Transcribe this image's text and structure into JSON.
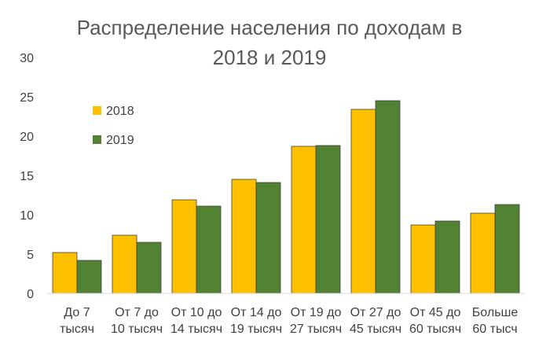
{
  "chart_data": {
    "type": "bar",
    "title_lines": [
      "Распределение населения по доходам в",
      "2018 и 2019"
    ],
    "categories": [
      [
        "До 7",
        "тысяч"
      ],
      [
        "От 7 до",
        "10 тысяч"
      ],
      [
        "От 10 до",
        "14 тысяч"
      ],
      [
        "От 14 до",
        "19 тысяч"
      ],
      [
        "От 19 до",
        "27 тысяч"
      ],
      [
        "От 27 до",
        "45 тысяч"
      ],
      [
        "От 45 до",
        "60 тысяч"
      ],
      [
        "Больше",
        "60 тысч"
      ]
    ],
    "series": [
      {
        "name": "2018",
        "color": "#FFC000",
        "values": [
          5.2,
          7.4,
          11.9,
          14.5,
          18.7,
          23.4,
          8.7,
          10.2
        ]
      },
      {
        "name": "2019",
        "color": "#548235",
        "values": [
          4.2,
          6.5,
          11.1,
          14.1,
          18.8,
          24.5,
          9.2,
          11.3
        ]
      }
    ],
    "ylim": [
      0,
      30
    ],
    "yticks": [
      0,
      5,
      10,
      15,
      20,
      25,
      30
    ],
    "xlabel": "",
    "ylabel": "",
    "grid": false,
    "legend_position": "top-left"
  }
}
